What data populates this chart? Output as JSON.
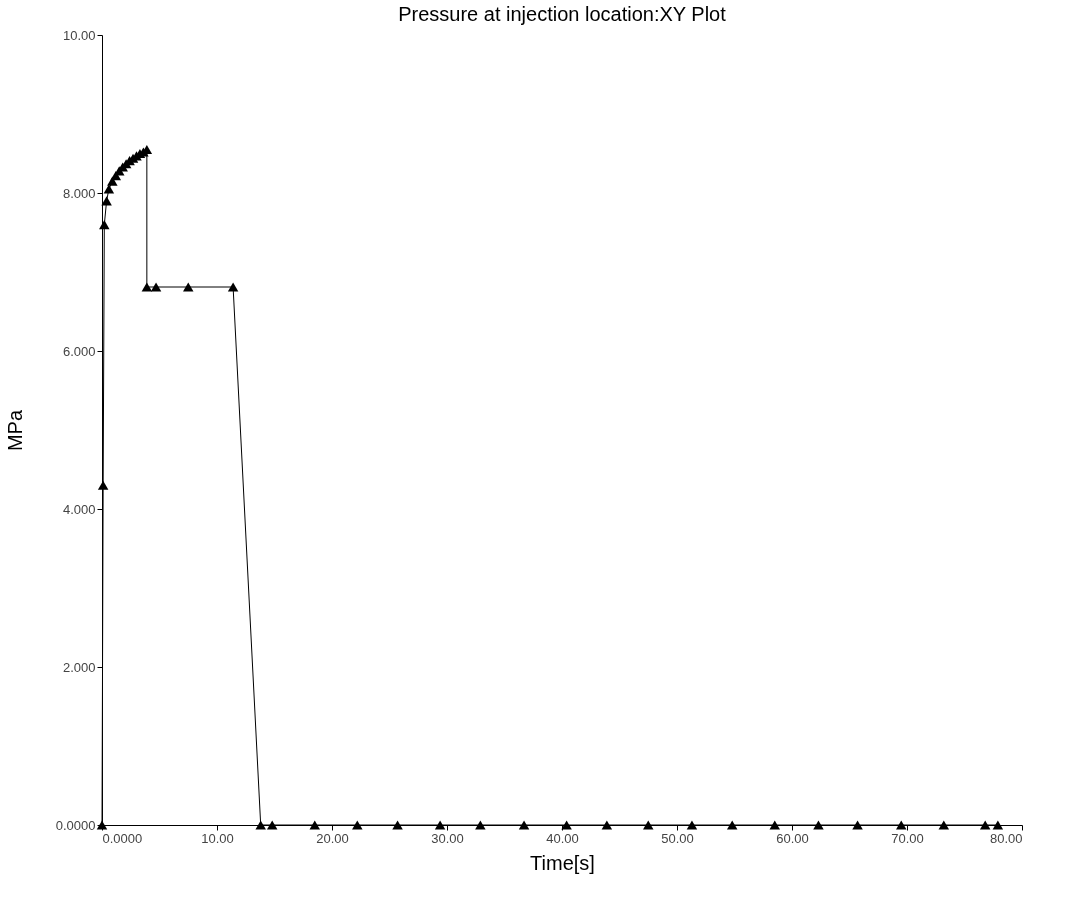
{
  "chart_data": {
    "type": "line",
    "title": "Pressure at injection location:XY Plot",
    "xlabel": "Time[s]",
    "ylabel": "MPa",
    "x": [
      0,
      0.1,
      0.2,
      0.4,
      0.6,
      0.9,
      1.2,
      1.5,
      1.8,
      2.1,
      2.4,
      2.7,
      3.0,
      3.3,
      3.6,
      3.9,
      3.9,
      4.7,
      7.5,
      11.4,
      13.8,
      14.8,
      18.5,
      22.2,
      25.7,
      29.4,
      32.9,
      36.7,
      40.4,
      43.9,
      47.5,
      51.3,
      54.8,
      58.5,
      62.3,
      65.7,
      69.5,
      73.2,
      76.8,
      77.9
    ],
    "series": [
      {
        "color": "#000000",
        "values": [
          0,
          4.3,
          7.6,
          7.9,
          8.05,
          8.15,
          8.22,
          8.28,
          8.33,
          8.37,
          8.41,
          8.44,
          8.47,
          8.5,
          8.52,
          8.55,
          6.81,
          6.81,
          6.81,
          6.81,
          0,
          0,
          0,
          0,
          0,
          0,
          0,
          0,
          0,
          0,
          0,
          0,
          0,
          0,
          0,
          0,
          0,
          0,
          0,
          0
        ]
      }
    ],
    "xlim": [
      0,
      80
    ],
    "ylim": [
      0,
      10
    ],
    "xticks": [
      {
        "value": 0,
        "label": "0.0000"
      },
      {
        "value": 10,
        "label": "10.00"
      },
      {
        "value": 20,
        "label": "20.00"
      },
      {
        "value": 30,
        "label": "30.00"
      },
      {
        "value": 40,
        "label": "40.00"
      },
      {
        "value": 50,
        "label": "50.00"
      },
      {
        "value": 60,
        "label": "60.00"
      },
      {
        "value": 70,
        "label": "70.00"
      },
      {
        "value": 80,
        "label": "80.00"
      }
    ],
    "yticks": [
      {
        "value": 0,
        "label": "0.0000"
      },
      {
        "value": 2,
        "label": "2.000"
      },
      {
        "value": 4,
        "label": "4.000"
      },
      {
        "value": 6,
        "label": "6.000"
      },
      {
        "value": 8,
        "label": "8.000"
      },
      {
        "value": 10,
        "label": "10.00"
      }
    ],
    "marker": "triangle",
    "line_style": "solid",
    "grid": false
  }
}
